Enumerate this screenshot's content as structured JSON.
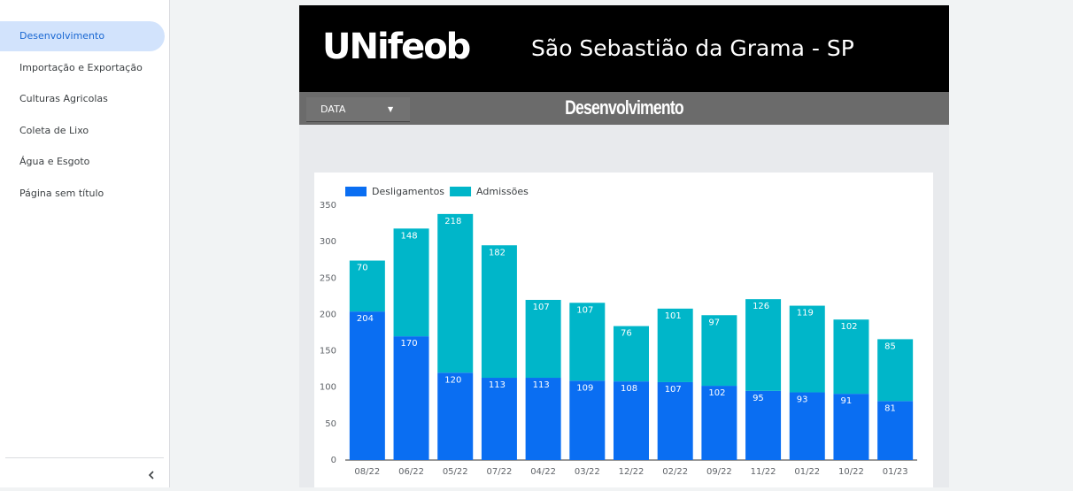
{
  "nav": {
    "items": [
      "Desenvolvimento",
      "Importação e Exportação",
      "Culturas Agricolas",
      "Coleta de Lixo",
      "Água e Esgoto",
      "Página sem título"
    ]
  },
  "header": {
    "logo": "UNifeob",
    "title": "São Sebastião da Grama - SP"
  },
  "toolbar": {
    "filter": "DATA",
    "page_title": "Desenvolvimento"
  },
  "chart_data": {
    "type": "stacked-bar",
    "categories": [
      "08/22",
      "06/22",
      "05/22",
      "07/22",
      "04/22",
      "03/22",
      "12/22",
      "02/22",
      "09/22",
      "11/22",
      "01/22",
      "10/22",
      "01/23"
    ],
    "series": [
      {
        "name": "Desligamentos",
        "color": "#0a6ef2",
        "values": [
          204,
          170,
          120,
          113,
          113,
          109,
          108,
          107,
          102,
          95,
          93,
          91,
          81
        ]
      },
      {
        "name": "Admissões",
        "color": "#00b6c9",
        "values": [
          70,
          148,
          218,
          182,
          107,
          107,
          76,
          101,
          97,
          126,
          119,
          102,
          85
        ]
      }
    ],
    "ylim": [
      0,
      350
    ],
    "yticks": [
      0,
      50,
      100,
      150,
      200,
      250,
      300,
      350
    ],
    "grid": false,
    "legend": "top-left"
  }
}
